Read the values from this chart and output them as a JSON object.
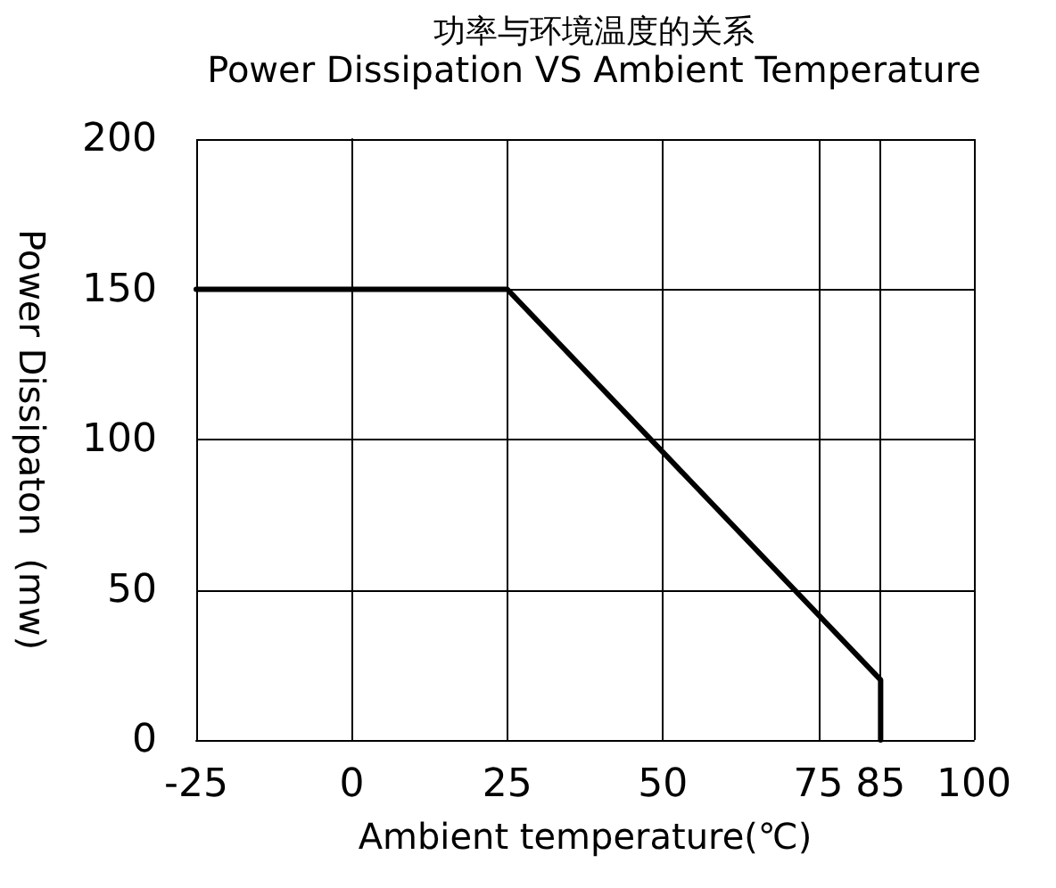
{
  "chart_data": {
    "type": "line",
    "title": "功率与环境温度的关系",
    "subtitle": "Power Dissipation VS Ambient Temperature",
    "xlabel": "Ambient temperature(℃)",
    "ylabel": "Power Dissipaton  (mw)",
    "x": [
      -25,
      25,
      85,
      85
    ],
    "series": [
      {
        "color": "#000000",
        "values": [
          150,
          150,
          20,
          0
        ]
      }
    ],
    "xlim": [
      -25,
      100
    ],
    "xticks": [
      -25,
      0,
      25,
      50,
      75,
      85,
      100
    ],
    "ylim": [
      0,
      200
    ],
    "yticks": [
      0,
      50,
      100,
      150,
      200
    ],
    "grid": true,
    "marker": "none",
    "line_style": "solid"
  }
}
